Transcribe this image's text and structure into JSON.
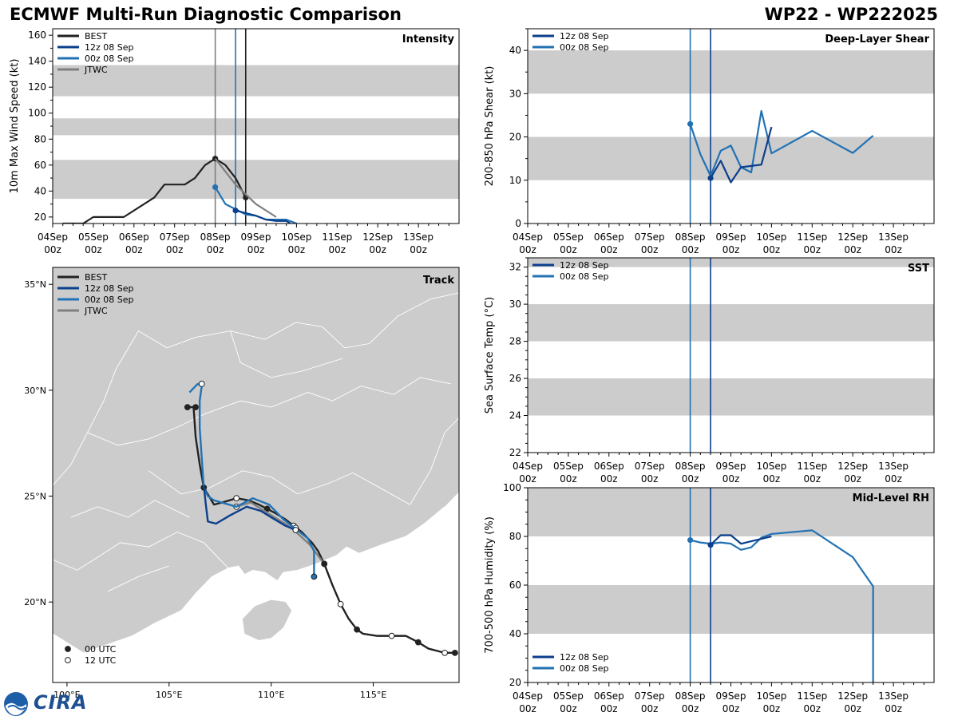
{
  "header": {
    "title": "ECMWF Multi-Run Diagnostic Comparison",
    "storm_id": "WP22 - WP222025"
  },
  "logo": {
    "text": "CIRA"
  },
  "colors": {
    "best": "#222222",
    "run12": "#0c3f8c",
    "run00": "#2272b4",
    "jtwc": "#808080",
    "band": "#cccccc",
    "land": "#cccccc"
  },
  "chart_data": [
    {
      "id": "intensity",
      "type": "line",
      "title": "Intensity",
      "ylabel": "10m Max Wind Speed (kt)",
      "xlim": [
        0,
        10
      ],
      "ylim": [
        15,
        165
      ],
      "yticks": [
        20,
        40,
        60,
        80,
        100,
        120,
        140,
        160
      ],
      "xtick_labels": [
        "04Sep\n00z",
        "05Sep\n00z",
        "06Sep\n00z",
        "07Sep\n00z",
        "08Sep\n00z",
        "09Sep\n00z",
        "10Sep\n00z",
        "11Sep\n00z",
        "12Sep\n00z",
        "13Sep\n00z"
      ],
      "bands": [
        [
          34,
          64
        ],
        [
          83,
          96
        ],
        [
          113,
          137
        ]
      ],
      "vlines": [
        {
          "x": 4.0,
          "color": "jtwc"
        },
        {
          "x": 4.5,
          "color": "run00"
        },
        {
          "x": 4.75,
          "color": "best"
        }
      ],
      "legend": [
        "BEST",
        "12z 08 Sep",
        "00z 08 Sep",
        "JTWC"
      ],
      "series": [
        {
          "name": "BEST",
          "color": "best",
          "x": [
            0.25,
            0.75,
            1.0,
            1.75,
            2.5,
            2.75,
            3.25,
            3.5,
            3.75,
            4.0,
            4.25,
            4.5,
            4.75
          ],
          "y": [
            15,
            15,
            20,
            20,
            35,
            45,
            45,
            50,
            60,
            65,
            60,
            50,
            35
          ],
          "markers": [
            4.0,
            4.75
          ]
        },
        {
          "name": "00z 08 Sep",
          "color": "run00",
          "x": [
            4.0,
            4.25,
            4.5,
            4.75,
            5.0,
            5.25,
            5.5,
            5.75,
            6.0
          ],
          "y": [
            43,
            30,
            26,
            22,
            21,
            18,
            18,
            18,
            15
          ],
          "markers": [
            4.0
          ]
        },
        {
          "name": "12z 08 Sep",
          "color": "run12",
          "x": [
            4.5,
            4.75,
            5.0,
            5.25,
            5.5,
            5.75,
            5.85
          ],
          "y": [
            25,
            23,
            21,
            18,
            17,
            17,
            15
          ],
          "markers": [
            4.5
          ]
        },
        {
          "name": "JTWC",
          "color": "jtwc",
          "x": [
            4.0,
            4.5,
            5.0,
            5.5
          ],
          "y": [
            65,
            45,
            30,
            20
          ],
          "markers": []
        }
      ]
    },
    {
      "id": "shear",
      "type": "line",
      "title": "Deep-Layer Shear",
      "ylabel": "200-850 hPa Shear (kt)",
      "xlim": [
        0,
        10
      ],
      "ylim": [
        0,
        45
      ],
      "yticks": [
        0,
        10,
        20,
        30,
        40
      ],
      "xtick_labels": [
        "04Sep\n00z",
        "05Sep\n00z",
        "06Sep\n00z",
        "07Sep\n00z",
        "08Sep\n00z",
        "09Sep\n00z",
        "10Sep\n00z",
        "11Sep\n00z",
        "12Sep\n00z",
        "13Sep\n00z"
      ],
      "bands": [
        [
          10,
          20
        ],
        [
          30,
          40
        ]
      ],
      "vlines": [
        {
          "x": 4.0,
          "color": "run00"
        },
        {
          "x": 4.5,
          "color": "run12"
        }
      ],
      "legend": [
        "12z 08 Sep",
        "00z 08 Sep"
      ],
      "series": [
        {
          "name": "00z 08 Sep",
          "color": "run00",
          "x": [
            4.0,
            4.25,
            4.5,
            4.75,
            5.0,
            5.25,
            5.5,
            5.75,
            6.0,
            7.0,
            8.0,
            8.5
          ],
          "y": [
            23,
            16,
            11,
            16.8,
            18,
            13,
            11.8,
            26,
            16.2,
            21.4,
            16.3,
            20.3
          ],
          "markers": [
            4.0
          ]
        },
        {
          "name": "12z 08 Sep",
          "color": "run12",
          "x": [
            4.5,
            4.75,
            5.0,
            5.25,
            5.5,
            5.75,
            6.0
          ],
          "y": [
            10.5,
            14.5,
            9.5,
            13,
            13.3,
            13.6,
            22.3
          ],
          "markers": [
            4.5
          ]
        }
      ]
    },
    {
      "id": "sst",
      "type": "line",
      "title": "SST",
      "ylabel": "Sea Surface Temp (°C)",
      "xlim": [
        0,
        10
      ],
      "ylim": [
        22,
        32.5
      ],
      "yticks": [
        22,
        24,
        26,
        28,
        30,
        32
      ],
      "xtick_labels": [
        "04Sep\n00z",
        "05Sep\n00z",
        "06Sep\n00z",
        "07Sep\n00z",
        "08Sep\n00z",
        "09Sep\n00z",
        "10Sep\n00z",
        "11Sep\n00z",
        "12Sep\n00z",
        "13Sep\n00z"
      ],
      "bands": [
        [
          24,
          26
        ],
        [
          28,
          30
        ],
        [
          32,
          34
        ]
      ],
      "vlines": [
        {
          "x": 4.0,
          "color": "run00"
        },
        {
          "x": 4.5,
          "color": "run12"
        }
      ],
      "legend": [
        "12z 08 Sep",
        "00z 08 Sep"
      ],
      "series": []
    },
    {
      "id": "rh",
      "type": "line",
      "title": "Mid-Level RH",
      "ylabel": "700-500 hPa Humidity (%)",
      "xlim": [
        0,
        10
      ],
      "ylim": [
        20,
        100
      ],
      "yticks": [
        20,
        40,
        60,
        80,
        100
      ],
      "xtick_labels": [
        "04Sep\n00z",
        "05Sep\n00z",
        "06Sep\n00z",
        "07Sep\n00z",
        "08Sep\n00z",
        "09Sep\n00z",
        "10Sep\n00z",
        "11Sep\n00z",
        "12Sep\n00z",
        "13Sep\n00z"
      ],
      "bands": [
        [
          40,
          60
        ],
        [
          80,
          100
        ]
      ],
      "vlines": [
        {
          "x": 4.0,
          "color": "run00"
        },
        {
          "x": 4.5,
          "color": "run12"
        }
      ],
      "legend": [
        "12z 08 Sep",
        "00z 08 Sep"
      ],
      "series": [
        {
          "name": "00z 08 Sep",
          "color": "run00",
          "x": [
            4.0,
            4.25,
            4.5,
            4.75,
            5.0,
            5.25,
            5.5,
            5.75,
            6.0,
            7.0,
            8.0,
            8.5,
            8.5
          ],
          "y": [
            78.5,
            77.5,
            77,
            77.5,
            77,
            74.5,
            75.5,
            79.5,
            81,
            82.5,
            71.5,
            59.5,
            20
          ],
          "markers": [
            4.0
          ]
        },
        {
          "name": "12z 08 Sep",
          "color": "run12",
          "x": [
            4.5,
            4.75,
            5.0,
            5.25,
            5.5,
            5.75,
            6.0
          ],
          "y": [
            76.5,
            80.5,
            80.5,
            77,
            78,
            79,
            80
          ],
          "markers": [
            4.5
          ]
        }
      ]
    },
    {
      "id": "track",
      "type": "scatter",
      "title": "Track",
      "xlim": [
        99.3,
        119.2
      ],
      "ylim": [
        16.2,
        35.8
      ],
      "xtick_values": [
        100,
        105,
        110,
        115
      ],
      "xtick_labels": [
        "100°E",
        "105°E",
        "110°E",
        "115°E"
      ],
      "ytick_values": [
        20,
        25,
        30,
        35
      ],
      "ytick_labels": [
        "20°N",
        "25°N",
        "30°N",
        "35°N"
      ],
      "legend": [
        "BEST",
        "12z 08 Sep",
        "00z 08 Sep",
        "JTWC"
      ],
      "marker_legend": [
        "00 UTC",
        "12 UTC"
      ],
      "series": [
        {
          "name": "BEST",
          "color": "best",
          "lon": [
            119.0,
            118.5,
            117.7,
            117.2,
            116.6,
            115.9,
            115.2,
            114.5,
            114.2,
            113.8,
            113.4,
            113.0,
            112.6,
            112.3,
            112.0,
            111.5,
            111.1,
            110.7,
            110.2,
            109.8,
            109.4,
            108.9,
            108.3,
            107.6,
            107.2,
            106.7,
            106.5,
            106.3,
            106.2,
            105.9
          ],
          "lat": [
            17.6,
            17.6,
            17.8,
            18.1,
            18.4,
            18.4,
            18.4,
            18.5,
            18.7,
            19.2,
            19.9,
            20.8,
            21.8,
            22.4,
            22.8,
            23.3,
            23.6,
            23.9,
            24.2,
            24.4,
            24.6,
            24.8,
            24.9,
            24.7,
            24.6,
            25.4,
            26.5,
            27.8,
            29.2,
            29.2
          ],
          "dots": [
            {
              "lon": 119.0,
              "lat": 17.6,
              "kind": "00"
            },
            {
              "lon": 118.5,
              "lat": 17.6,
              "kind": "12"
            },
            {
              "lon": 117.2,
              "lat": 18.1,
              "kind": "00"
            },
            {
              "lon": 115.9,
              "lat": 18.4,
              "kind": "12"
            },
            {
              "lon": 114.2,
              "lat": 18.7,
              "kind": "00"
            },
            {
              "lon": 113.4,
              "lat": 19.9,
              "kind": "12"
            },
            {
              "lon": 112.6,
              "lat": 21.8,
              "kind": "00"
            },
            {
              "lon": 111.1,
              "lat": 23.6,
              "kind": "12"
            },
            {
              "lon": 109.8,
              "lat": 24.4,
              "kind": "00"
            },
            {
              "lon": 108.3,
              "lat": 24.9,
              "kind": "12"
            },
            {
              "lon": 106.7,
              "lat": 25.4,
              "kind": "00"
            },
            {
              "lon": 106.3,
              "lat": 29.2,
              "kind": "00"
            },
            {
              "lon": 105.9,
              "lat": 29.2,
              "kind": "00"
            }
          ]
        },
        {
          "name": "JTWC",
          "color": "jtwc",
          "lon": [
            112.6,
            111.9,
            111.0,
            110.0,
            109.0,
            108.3
          ],
          "lat": [
            21.8,
            22.7,
            23.5,
            24.1,
            24.7,
            24.5
          ],
          "dots": [
            {
              "lon": 112.6,
              "lat": 21.8,
              "kind": "00"
            },
            {
              "lon": 111.2,
              "lat": 23.5,
              "kind": "12"
            },
            {
              "lon": 108.3,
              "lat": 24.5,
              "kind": "12"
            }
          ]
        },
        {
          "name": "00z 08 Sep",
          "color": "run00",
          "lon": [
            112.1,
            112.1,
            111.8,
            111.4,
            110.6,
            109.9,
            109.1,
            108.3,
            107.2,
            106.9,
            106.7,
            106.6,
            106.5,
            106.5,
            106.6,
            106.4,
            106.0
          ],
          "lat": [
            21.2,
            22.4,
            23.0,
            23.3,
            23.9,
            24.6,
            24.9,
            24.5,
            24.8,
            25.0,
            25.4,
            26.8,
            28.2,
            29.5,
            30.2,
            30.3,
            29.9
          ],
          "dots": [
            {
              "lon": 112.1,
              "lat": 21.2,
              "kind": "00"
            },
            {
              "lon": 106.6,
              "lat": 30.3,
              "kind": "12"
            }
          ]
        },
        {
          "name": "12z 08 Sep",
          "color": "run12",
          "lon": [
            111.2,
            110.7,
            110.0,
            109.5,
            108.8,
            108.0,
            107.3,
            106.9,
            106.8,
            106.7
          ],
          "lat": [
            23.4,
            23.6,
            24.0,
            24.3,
            24.5,
            24.1,
            23.7,
            23.8,
            24.6,
            25.5
          ],
          "dots": [
            {
              "lon": 111.2,
              "lat": 23.4,
              "kind": "12"
            }
          ]
        }
      ]
    }
  ]
}
